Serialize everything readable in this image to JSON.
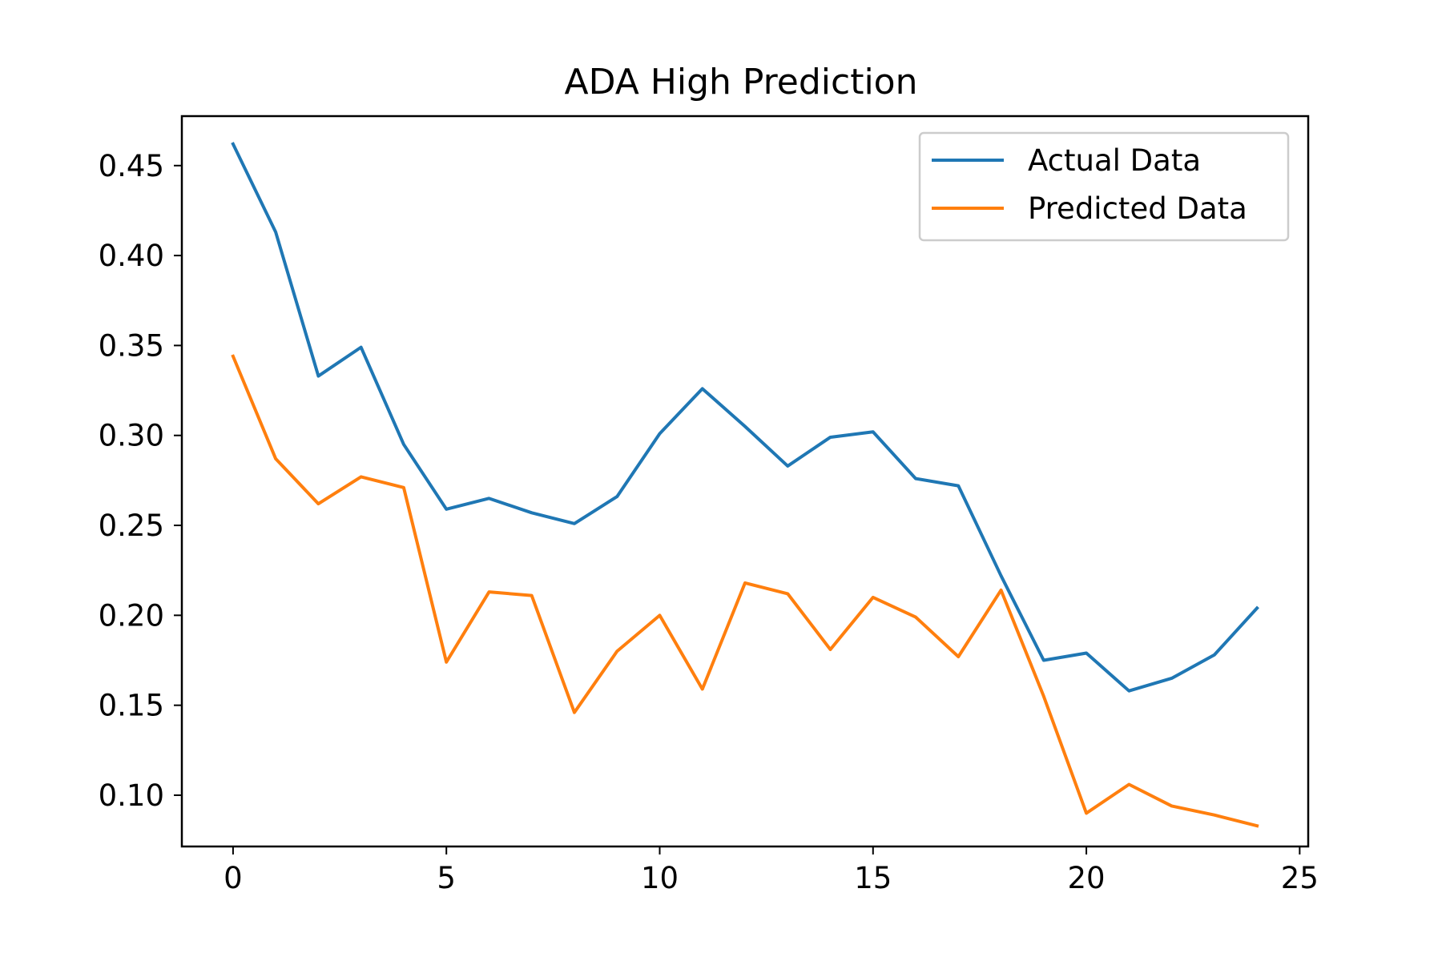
{
  "chart_data": {
    "type": "line",
    "title": "ADA High Prediction",
    "xlabel": "",
    "ylabel": "",
    "xlim": [
      -1.2,
      25.2
    ],
    "ylim": [
      0.0715,
      0.4775
    ],
    "xticks": [
      0,
      5,
      10,
      15,
      20,
      25
    ],
    "yticks": [
      0.1,
      0.15,
      0.2,
      0.25,
      0.3,
      0.35,
      0.4,
      0.45
    ],
    "xtick_labels": [
      "0",
      "5",
      "10",
      "15",
      "20",
      "25"
    ],
    "ytick_labels": [
      "0.10",
      "0.15",
      "0.20",
      "0.25",
      "0.30",
      "0.35",
      "0.40",
      "0.45"
    ],
    "grid": false,
    "legend_position": "top-right",
    "x": [
      0,
      1,
      2,
      3,
      4,
      5,
      6,
      7,
      8,
      9,
      10,
      11,
      12,
      13,
      14,
      15,
      16,
      17,
      18,
      19,
      20,
      21,
      22,
      23,
      24
    ],
    "series": [
      {
        "name": "Actual Data",
        "color": "#1f77b4",
        "values": [
          0.462,
          0.413,
          0.333,
          0.349,
          0.295,
          0.259,
          0.265,
          0.257,
          0.251,
          0.266,
          0.301,
          0.326,
          0.305,
          0.283,
          0.299,
          0.302,
          0.276,
          0.272,
          0.222,
          0.175,
          0.179,
          0.158,
          0.165,
          0.178,
          0.204
        ]
      },
      {
        "name": "Predicted Data",
        "color": "#ff7f0e",
        "values": [
          0.344,
          0.287,
          0.262,
          0.277,
          0.271,
          0.174,
          0.213,
          0.211,
          0.146,
          0.18,
          0.2,
          0.159,
          0.218,
          0.212,
          0.181,
          0.21,
          0.199,
          0.177,
          0.214,
          0.155,
          0.09,
          0.106,
          0.094,
          0.089,
          0.083
        ]
      }
    ]
  }
}
